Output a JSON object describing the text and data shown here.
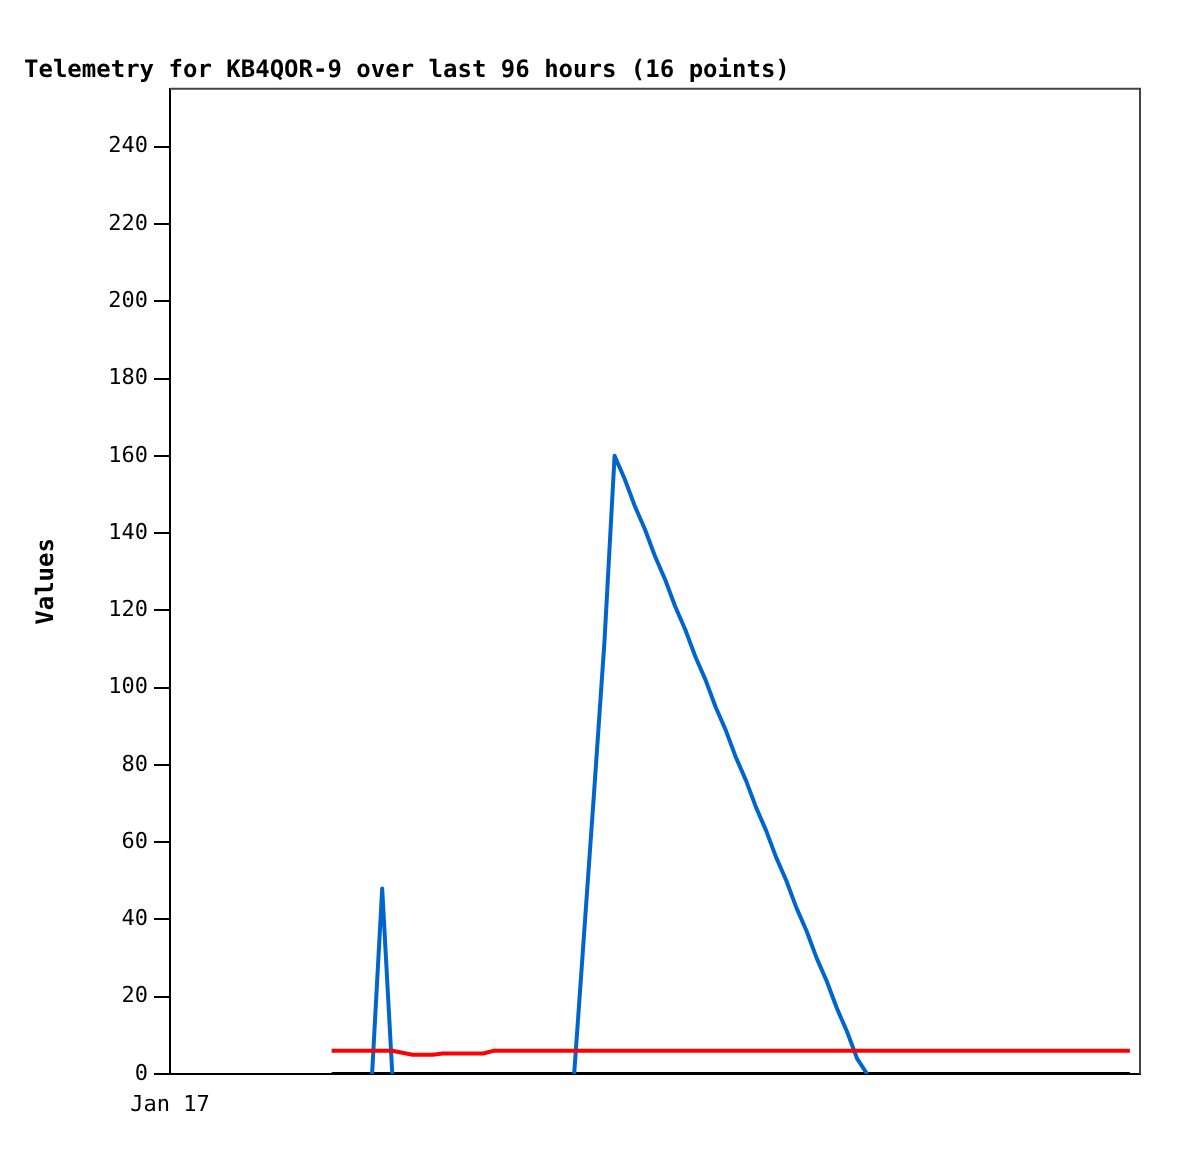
{
  "chart_data": {
    "type": "line",
    "title": "Telemetry for KB4QOR-9 over last 96 hours (16 points)",
    "ylabel": "Values",
    "annotations": [
      "Jan 17"
    ],
    "categories": [
      null,
      null,
      null,
      null,
      null,
      null,
      null,
      null,
      null,
      null,
      null,
      null,
      null,
      null,
      null,
      null,
      null,
      null,
      null,
      null,
      null,
      null,
      null,
      null,
      null,
      null,
      null,
      null,
      null,
      null,
      null,
      null,
      null,
      null,
      null,
      null,
      null,
      null,
      null,
      null,
      null,
      null,
      null,
      null,
      null,
      null,
      null,
      null,
      null,
      null,
      null,
      null,
      null,
      null,
      null,
      null,
      null,
      null,
      null,
      null,
      null,
      null,
      null,
      null,
      null,
      null,
      null,
      null,
      null,
      null,
      null,
      null,
      null,
      null,
      null,
      null,
      null,
      null,
      null,
      null,
      null,
      null,
      null,
      null,
      null,
      null,
      null,
      null,
      null,
      null,
      null,
      null,
      null,
      null,
      null,
      null,
      null
    ],
    "ylim": [
      0,
      255
    ],
    "yticks": [
      0,
      20,
      40,
      60,
      80,
      100,
      120,
      140,
      160,
      180,
      200,
      220,
      240
    ],
    "grid": false,
    "legend": false,
    "marker": "none",
    "line_style": "solid",
    "series": [
      {
        "color": "#ff0000",
        "values": [
          null,
          null,
          null,
          null,
          null,
          null,
          null,
          null,
          null,
          null,
          null,
          null,
          null,
          null,
          null,
          null,
          6,
          6,
          6,
          6,
          6,
          6,
          6,
          5.5,
          5,
          5,
          5,
          5.3,
          5.3,
          5.3,
          5.3,
          5.3,
          6,
          6,
          6,
          6,
          6,
          6,
          6,
          6,
          6,
          6,
          6,
          6,
          6,
          6,
          6,
          6,
          6,
          6,
          6,
          6,
          6,
          6,
          6,
          6,
          6,
          6,
          6,
          6,
          6,
          6,
          6,
          6,
          6,
          6,
          6,
          6,
          6,
          6,
          6,
          6,
          6,
          6,
          6,
          6,
          6,
          6,
          6,
          6,
          6,
          6,
          6,
          6,
          6,
          6,
          6,
          6,
          6,
          6,
          6,
          6,
          6,
          6,
          6,
          6,
          null
        ]
      },
      {
        "color": "#0066cc",
        "values": [
          null,
          null,
          null,
          null,
          null,
          null,
          null,
          null,
          null,
          null,
          null,
          null,
          null,
          null,
          null,
          null,
          null,
          null,
          null,
          null,
          0,
          48,
          0,
          null,
          null,
          null,
          null,
          null,
          null,
          null,
          null,
          null,
          null,
          null,
          null,
          null,
          null,
          null,
          null,
          null,
          0,
          37,
          74,
          112,
          160,
          154,
          147,
          141,
          134,
          128,
          121,
          115,
          108,
          102,
          95,
          89,
          82,
          76,
          69,
          63,
          56,
          50,
          43,
          37,
          30,
          24,
          17,
          11,
          4,
          0,
          null,
          null,
          null,
          null,
          null,
          null,
          null,
          null,
          null,
          null,
          null,
          null,
          null,
          null,
          null,
          null,
          null,
          null,
          null,
          null,
          null,
          null,
          null,
          null,
          null,
          null,
          null
        ]
      },
      {
        "color": "#000000",
        "values": [
          null,
          null,
          null,
          null,
          null,
          null,
          null,
          null,
          null,
          null,
          null,
          null,
          null,
          null,
          null,
          null,
          0,
          0,
          0,
          0,
          0,
          0,
          0,
          0,
          0,
          0,
          0,
          0,
          0,
          0,
          0,
          0,
          0,
          0,
          0,
          0,
          0,
          0,
          0,
          0,
          0,
          0,
          0,
          0,
          0,
          0,
          0,
          0,
          0,
          0,
          0,
          0,
          0,
          0,
          0,
          0,
          0,
          0,
          0,
          0,
          0,
          0,
          0,
          0,
          0,
          0,
          0,
          0,
          0,
          0,
          0,
          0,
          0,
          0,
          0,
          0,
          0,
          0,
          0,
          0,
          0,
          0,
          0,
          0,
          0,
          0,
          0,
          0,
          0,
          0,
          0,
          0,
          0,
          0,
          0,
          0,
          null
        ]
      }
    ]
  }
}
